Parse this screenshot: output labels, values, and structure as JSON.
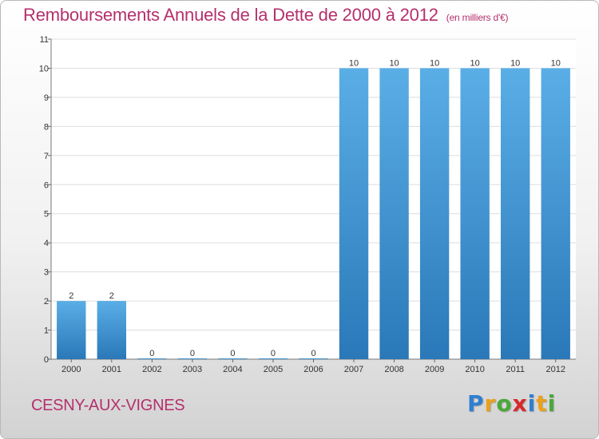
{
  "header": {
    "title": "Remboursements Annuels de la Dette de 2000 à 2012",
    "subtitle": "(en milliers d'€)"
  },
  "footer": {
    "town": "CESNY-AUX-VIGNES",
    "logo": [
      {
        "char": "P",
        "color": "#2f7fd0"
      },
      {
        "char": "r",
        "color": "#e8a21c"
      },
      {
        "char": "o",
        "color": "#4aa83a"
      },
      {
        "char": "x",
        "color": "#d8282c"
      },
      {
        "char": "i",
        "color": "#2f7fd0"
      },
      {
        "char": "t",
        "color": "#e8a21c"
      },
      {
        "char": "i",
        "color": "#4aa83a"
      }
    ]
  },
  "colors": {
    "bar_light": "#5aaee6",
    "bar_dark": "#2a78b8",
    "title": "#b5306c",
    "grid": "#dddddd"
  },
  "chart_data": {
    "type": "bar",
    "title": "Remboursements Annuels de la Dette de 2000 à 2012",
    "subtitle": "(en milliers d'€)",
    "xlabel": "",
    "ylabel": "",
    "categories": [
      "2000",
      "2001",
      "2002",
      "2003",
      "2004",
      "2005",
      "2006",
      "2007",
      "2008",
      "2009",
      "2010",
      "2011",
      "2012"
    ],
    "values": [
      2,
      2,
      0,
      0,
      0,
      0,
      0,
      10,
      10,
      10,
      10,
      10,
      10
    ],
    "ylim": [
      0,
      11
    ],
    "yticks": [
      0,
      1,
      2,
      3,
      4,
      5,
      6,
      7,
      8,
      9,
      10,
      11
    ],
    "grid": "horizontal"
  }
}
